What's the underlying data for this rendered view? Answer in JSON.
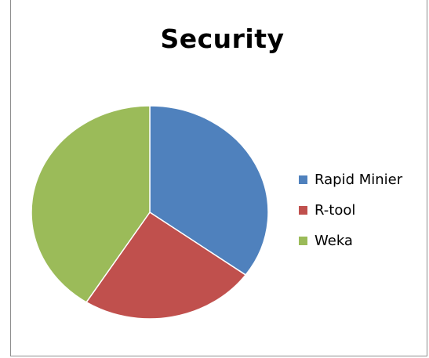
{
  "chart_data": {
    "type": "pie",
    "title": "Security",
    "categories": [
      "Rapid Minier",
      "R-tool",
      "Weka"
    ],
    "values": [
      35,
      24,
      41
    ],
    "colors": [
      "#4F81BD",
      "#C0504D",
      "#9BBB59"
    ],
    "legend_position": "right",
    "start_angle": "12 o'clock, clockwise"
  }
}
